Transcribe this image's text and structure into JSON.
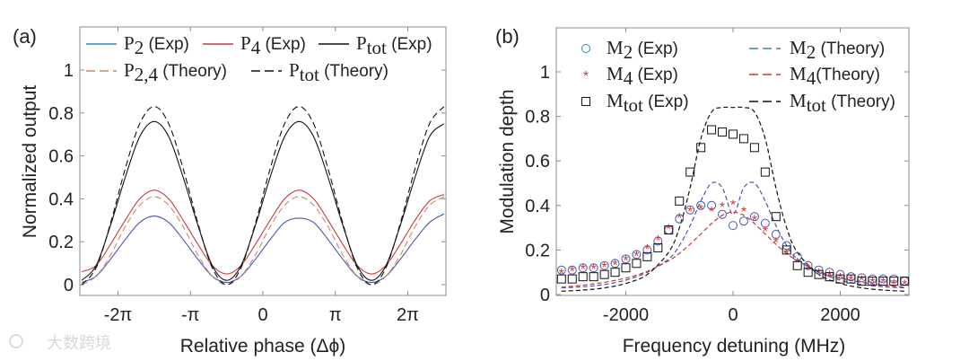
{
  "watermark": "大数跨境",
  "colors": {
    "blue": "#4a55b0",
    "blue_legend": "#2f86c4",
    "red": "#cc3a3a",
    "orange": "#c98a6c",
    "black": "#111111",
    "axis": "#8c8c8c"
  },
  "chart_data": [
    {
      "panel_label": "(a)",
      "type": "line",
      "xlabel": "Relative phase (Δϕ)",
      "ylabel": "Normalized output",
      "x_unit": "pi",
      "xlim": [
        -2.53,
        2.53
      ],
      "ylim": [
        -0.05,
        1.2
      ],
      "xticks": [
        -2,
        -1,
        0,
        1,
        2
      ],
      "xtick_labels": [
        "-2π",
        "-π",
        "0",
        "π",
        "2π"
      ],
      "yticks": [
        0,
        0.2,
        0.4,
        0.6,
        0.8,
        1
      ],
      "ytick_labels": [
        "0",
        "0.2",
        "0.4",
        "0.6",
        "0.8",
        "1"
      ],
      "legend_position": "top",
      "x": [
        -2.5,
        -2.3,
        -2.1,
        -1.9,
        -1.7,
        -1.5,
        -1.3,
        -1.1,
        -0.9,
        -0.7,
        -0.5,
        -0.3,
        -0.1,
        0.1,
        0.3,
        0.5,
        0.7,
        0.9,
        1.1,
        1.3,
        1.5,
        1.7,
        1.9,
        2.1,
        2.3,
        2.5
      ],
      "series": [
        {
          "name": "P2 (Exp)",
          "sym": "P",
          "sub": "2",
          "suffix": " (Exp)",
          "color": "blue",
          "dash": false,
          "values": [
            0.01,
            0.04,
            0.12,
            0.21,
            0.29,
            0.32,
            0.29,
            0.21,
            0.12,
            0.04,
            0.01,
            0.04,
            0.12,
            0.21,
            0.29,
            0.31,
            0.29,
            0.21,
            0.12,
            0.04,
            0.01,
            0.04,
            0.12,
            0.21,
            0.29,
            0.33
          ]
        },
        {
          "name": "P4 (Exp)",
          "sym": "P",
          "sub": "4",
          "suffix": " (Exp)",
          "color": "red",
          "dash": false,
          "values": [
            0.06,
            0.09,
            0.19,
            0.3,
            0.4,
            0.44,
            0.4,
            0.3,
            0.19,
            0.09,
            0.05,
            0.09,
            0.19,
            0.3,
            0.4,
            0.44,
            0.4,
            0.3,
            0.19,
            0.09,
            0.05,
            0.09,
            0.19,
            0.3,
            0.39,
            0.42
          ]
        },
        {
          "name": "Ptot (Exp)",
          "sym": "P",
          "sub": "tot",
          "suffix": " (Exp)",
          "color": "black",
          "dash": false,
          "values": [
            0.02,
            0.09,
            0.28,
            0.5,
            0.69,
            0.76,
            0.69,
            0.5,
            0.28,
            0.09,
            0.02,
            0.09,
            0.28,
            0.5,
            0.69,
            0.76,
            0.69,
            0.5,
            0.28,
            0.09,
            0.02,
            0.09,
            0.28,
            0.5,
            0.69,
            0.75
          ]
        },
        {
          "name": "P2,4 (Theory)",
          "sym": "P",
          "sub": "2,4",
          "suffix": " (Theory)",
          "color": "orange",
          "dash": true,
          "values": [
            0.0,
            0.04,
            0.14,
            0.27,
            0.37,
            0.41,
            0.37,
            0.27,
            0.14,
            0.04,
            0.0,
            0.04,
            0.14,
            0.27,
            0.37,
            0.41,
            0.37,
            0.27,
            0.14,
            0.04,
            0.0,
            0.04,
            0.14,
            0.27,
            0.37,
            0.41
          ]
        },
        {
          "name": "Ptot (Theory)",
          "sym": "P",
          "sub": "tot",
          "suffix": " (Theory)",
          "color": "black",
          "dash": true,
          "values": [
            0.0,
            0.08,
            0.29,
            0.54,
            0.75,
            0.83,
            0.75,
            0.54,
            0.29,
            0.08,
            0.0,
            0.08,
            0.29,
            0.54,
            0.75,
            0.83,
            0.75,
            0.54,
            0.29,
            0.08,
            0.0,
            0.08,
            0.29,
            0.54,
            0.75,
            0.83
          ]
        }
      ]
    },
    {
      "panel_label": "(b)",
      "type": "scatter",
      "xlabel": "Frequency detuning (MHz)",
      "ylabel": "Modulation depth",
      "xlim": [
        -3300,
        3300
      ],
      "ylim": [
        0,
        1.2
      ],
      "xticks": [
        -2000,
        0,
        2000
      ],
      "xtick_labels": [
        "-2000",
        "0",
        "2000"
      ],
      "yticks": [
        0,
        0.2,
        0.4,
        0.6,
        0.8,
        1
      ],
      "ytick_labels": [
        "0",
        "0.2",
        "0.4",
        "0.6",
        "0.8",
        "1"
      ],
      "legend_position": "top",
      "x_exp": [
        -3200,
        -3000,
        -2800,
        -2600,
        -2400,
        -2200,
        -2000,
        -1800,
        -1600,
        -1400,
        -1200,
        -1000,
        -800,
        -600,
        -400,
        -200,
        0,
        200,
        400,
        600,
        800,
        1000,
        1200,
        1400,
        1600,
        1800,
        2000,
        2200,
        2400,
        2600,
        2800,
        3000,
        3200
      ],
      "x_theory": [
        -3200,
        -2800,
        -2400,
        -2000,
        -1600,
        -1200,
        -1000,
        -800,
        -600,
        -400,
        -200,
        0,
        200,
        400,
        600,
        800,
        1000,
        1200,
        1600,
        2000,
        2400,
        2800,
        3200
      ],
      "series": [
        {
          "name": "M2 (Exp)",
          "sym": "M",
          "sub": "2",
          "suffix": " (Exp)",
          "color": "blue",
          "marker": "circle",
          "values": [
            0.11,
            0.11,
            0.12,
            0.12,
            0.13,
            0.14,
            0.16,
            0.18,
            0.2,
            0.24,
            0.29,
            0.34,
            0.38,
            0.4,
            0.4,
            0.36,
            0.31,
            0.33,
            0.35,
            0.32,
            0.27,
            0.22,
            0.17,
            0.13,
            0.11,
            0.1,
            0.09,
            0.08,
            0.075,
            0.07,
            0.07,
            0.07,
            0.06
          ]
        },
        {
          "name": "M4 (Exp)",
          "sym": "M",
          "sub": "4",
          "suffix": " (Exp)",
          "color": "red",
          "marker": "star",
          "values": [
            0.1,
            0.11,
            0.12,
            0.12,
            0.13,
            0.14,
            0.16,
            0.18,
            0.21,
            0.25,
            0.3,
            0.35,
            0.38,
            0.39,
            0.38,
            0.4,
            0.41,
            0.38,
            0.34,
            0.29,
            0.24,
            0.19,
            0.15,
            0.12,
            0.1,
            0.09,
            0.08,
            0.07,
            0.07,
            0.06,
            0.06,
            0.055,
            0.05
          ]
        },
        {
          "name": "Mtot (Exp)",
          "sym": "M",
          "sub": "tot",
          "suffix": " (Exp)",
          "color": "black",
          "marker": "square",
          "values": [
            0.07,
            0.07,
            0.08,
            0.08,
            0.09,
            0.1,
            0.12,
            0.14,
            0.17,
            0.21,
            0.29,
            0.42,
            0.55,
            0.66,
            0.74,
            0.73,
            0.72,
            0.7,
            0.66,
            0.55,
            0.35,
            0.2,
            0.13,
            0.1,
            0.09,
            0.08,
            0.07,
            0.07,
            0.06,
            0.06,
            0.06,
            0.06,
            0.06
          ]
        },
        {
          "name": "M2 (Theory)",
          "sym": "M",
          "sub": "2",
          "suffix": " (Theory)",
          "color": "blue",
          "dash": true,
          "values": [
            0.03,
            0.035,
            0.045,
            0.065,
            0.1,
            0.16,
            0.22,
            0.31,
            0.42,
            0.5,
            0.48,
            0.36,
            0.48,
            0.5,
            0.42,
            0.31,
            0.22,
            0.16,
            0.1,
            0.065,
            0.045,
            0.035,
            0.03
          ]
        },
        {
          "name": "M4(Theory)",
          "sym": "M",
          "sub": "4",
          "suffix": "(Theory)",
          "color": "red",
          "dash": true,
          "values": [
            0.033,
            0.042,
            0.055,
            0.074,
            0.104,
            0.152,
            0.185,
            0.226,
            0.272,
            0.319,
            0.356,
            0.37,
            0.356,
            0.319,
            0.272,
            0.226,
            0.185,
            0.152,
            0.104,
            0.074,
            0.055,
            0.042,
            0.033
          ]
        },
        {
          "name": "Mtot (Theory)",
          "sym": "M",
          "sub": "tot",
          "suffix": " (Theory)",
          "color": "black",
          "dash": true,
          "values": [
            0.015,
            0.02,
            0.03,
            0.05,
            0.09,
            0.19,
            0.3,
            0.48,
            0.7,
            0.82,
            0.84,
            0.84,
            0.84,
            0.82,
            0.7,
            0.48,
            0.3,
            0.19,
            0.09,
            0.05,
            0.03,
            0.02,
            0.015
          ]
        }
      ]
    }
  ]
}
